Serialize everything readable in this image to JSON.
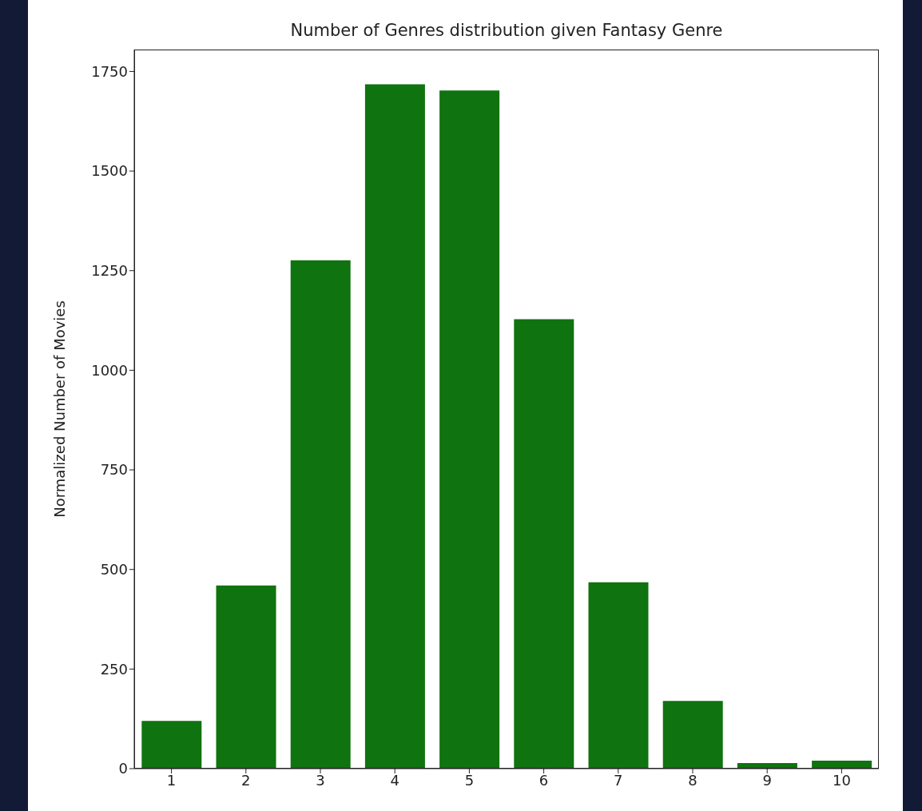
{
  "chart_data": {
    "type": "bar",
    "title": "Number of Genres distribution given Fantasy Genre",
    "ylabel": "Normalized Number of Movies",
    "categories": [
      "1",
      "2",
      "3",
      "4",
      "5",
      "6",
      "7",
      "8",
      "9",
      "10"
    ],
    "values": [
      120,
      460,
      1276,
      1718,
      1702,
      1128,
      468,
      170,
      14,
      20
    ],
    "color": "#0f730f",
    "ylim": [
      0,
      1805
    ],
    "yticks": [
      0,
      250,
      500,
      750,
      1000,
      1250,
      1500,
      1750
    ]
  }
}
